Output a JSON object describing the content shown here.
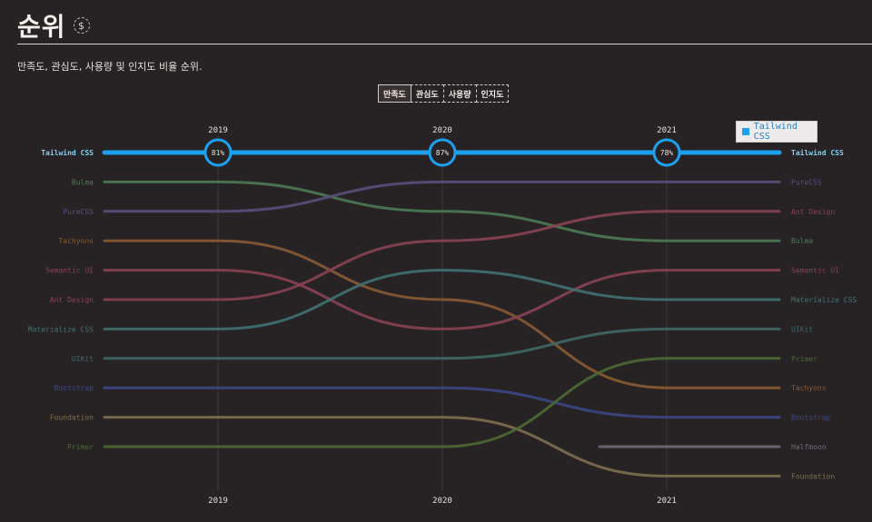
{
  "header": {
    "title": "순위",
    "icon": "dollar-icon"
  },
  "subtitle": "만족도, 관심도, 사용량 및 인지도 비율 순위.",
  "tabs": [
    {
      "label": "만족도",
      "active": true
    },
    {
      "label": "관심도",
      "active": false
    },
    {
      "label": "사용량",
      "active": false
    },
    {
      "label": "인지도",
      "active": false
    }
  ],
  "legend": {
    "label": "Tailwind CSS",
    "color": "#1ea0f0"
  },
  "chart_data": {
    "type": "line",
    "title": "순위",
    "years": [
      "2019",
      "2020",
      "2021"
    ],
    "highlight": "Tailwind CSS",
    "series": [
      {
        "name": "Tailwind CSS",
        "color": "#1ea0f0",
        "ranks": [
          1,
          1,
          1
        ],
        "pct": [
          "81%",
          "87%",
          "78%"
        ]
      },
      {
        "name": "Bulma",
        "color": "#4d7a55",
        "ranks": [
          2,
          3,
          4
        ]
      },
      {
        "name": "PureCSS",
        "color": "#5a4f7d",
        "ranks": [
          3,
          2,
          2
        ]
      },
      {
        "name": "Tachyons",
        "color": "#8a5a33",
        "ranks": [
          4,
          6,
          9
        ]
      },
      {
        "name": "Semantic UI",
        "color": "#8a4253",
        "ranks": [
          5,
          7,
          5
        ]
      },
      {
        "name": "Ant Design",
        "color": "#8a4253",
        "ranks": [
          6,
          4,
          3
        ]
      },
      {
        "name": "Materialize CSS",
        "color": "#3f7272",
        "ranks": [
          7,
          5,
          6
        ]
      },
      {
        "name": "UIKit",
        "color": "#3f6868",
        "ranks": [
          8,
          8,
          7
        ]
      },
      {
        "name": "Bootstrap",
        "color": "#3b4785",
        "ranks": [
          9,
          9,
          10
        ]
      },
      {
        "name": "Foundation",
        "color": "#7d6f4f",
        "ranks": [
          10,
          10,
          12
        ]
      },
      {
        "name": "Primer",
        "color": "#4a6a33",
        "ranks": [
          11,
          11,
          8
        ]
      },
      {
        "name": "Halfmoon",
        "color": "#6f6a78",
        "ranks": [
          null,
          null,
          11
        ]
      }
    ]
  }
}
